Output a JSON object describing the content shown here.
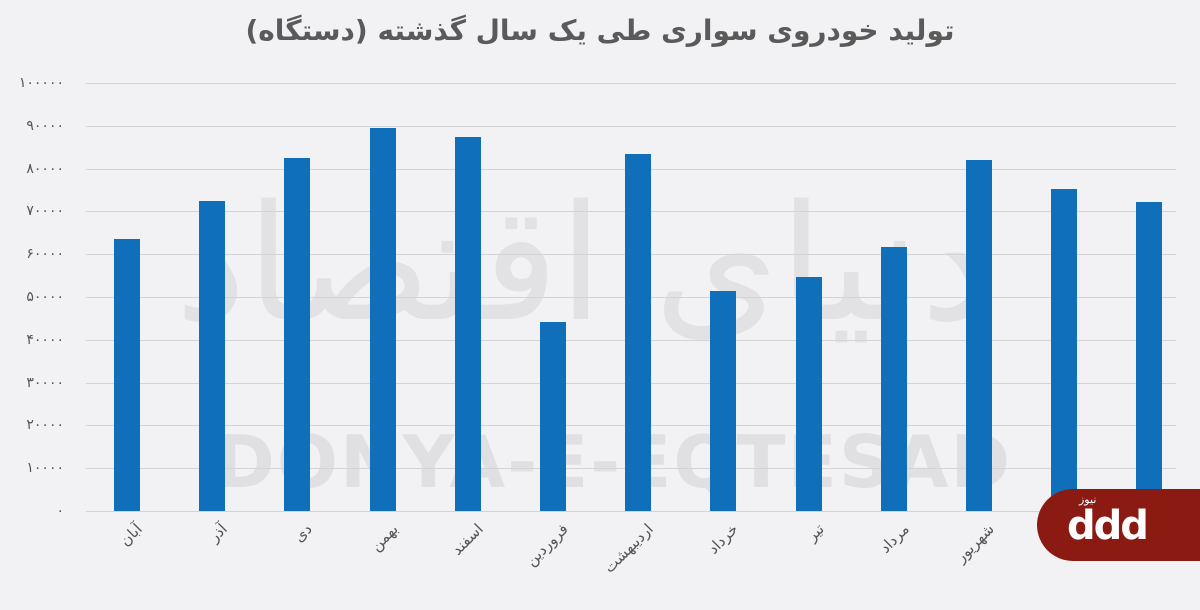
{
  "title": "تولید خودروی سواری طی یک سال گذشته (دستگاه)",
  "watermark": {
    "text_en": "DONYA-E-EQTESAD",
    "text_fa": "دنیای اقتصاد"
  },
  "logo": {
    "mark": "ddd",
    "sub": "نیوز",
    "color": "#8b1a12"
  },
  "bar_color": "#0f6fba",
  "chart_data": {
    "type": "bar",
    "title": "تولید خودروی سواری طی یک سال گذشته (دستگاه)",
    "xlabel": "",
    "ylabel": "",
    "ylim": [
      0,
      100000
    ],
    "grid": true,
    "legend": "none",
    "yticks": [
      "۰",
      "۱۰۰۰۰",
      "۲۰۰۰۰",
      "۳۰۰۰۰",
      "۴۰۰۰۰",
      "۵۰۰۰۰",
      "۶۰۰۰۰",
      "۷۰۰۰۰",
      "۸۰۰۰۰",
      "۹۰۰۰۰",
      "۱۰۰۰۰۰"
    ],
    "categories": [
      "آبان",
      "آذر",
      "دی",
      "بهمن",
      "اسفند",
      "فروردین",
      "اردیبهشت",
      "خرداد",
      "تیر",
      "مرداد",
      "شهریور",
      "",
      ""
    ],
    "values": [
      63500,
      72400,
      82500,
      89500,
      87400,
      44200,
      83400,
      51400,
      54700,
      61700,
      82000,
      75200,
      72200
    ]
  }
}
